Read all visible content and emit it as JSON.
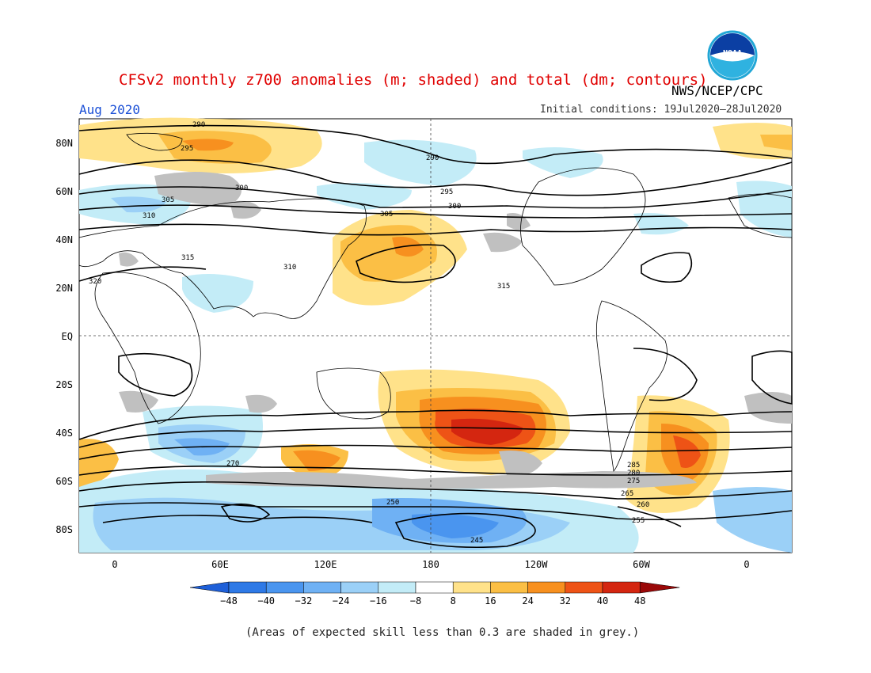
{
  "header": {
    "title": "CFSv2 monthly z700 anomalies (m; shaded) and total (dm; contours)",
    "agency": "NWS/NCEP/CPC",
    "month": "Aug 2020",
    "initial_conditions": "Initial conditions: 19Jul2020–28Jul2020"
  },
  "logo": {
    "name": "noaa-logo",
    "text": "NOAA"
  },
  "map": {
    "lat_labels": [
      "80N",
      "60N",
      "40N",
      "20N",
      "EQ",
      "20S",
      "40S",
      "60S",
      "80S"
    ],
    "lon_labels": [
      "0",
      "60E",
      "120E",
      "180",
      "120W",
      "60W",
      "0"
    ],
    "contour_labels": [
      "290",
      "295",
      "300",
      "305",
      "310",
      "315",
      "320",
      "315",
      "310",
      "305",
      "300",
      "295",
      "290",
      "285",
      "280",
      "275",
      "270",
      "265",
      "260",
      "255",
      "250",
      "245"
    ]
  },
  "colorbar": {
    "ticks": [
      "−48",
      "−40",
      "−32",
      "−24",
      "−16",
      "−8",
      "8",
      "16",
      "24",
      "32",
      "40",
      "48"
    ],
    "colors": [
      "#1e5fd8",
      "#2e79e6",
      "#4a95ef",
      "#6fb1f4",
      "#9bd0f7",
      "#c3ecf7",
      "#ffffff",
      "#ffe28a",
      "#fbbf45",
      "#f7901f",
      "#ee5316",
      "#d42610",
      "#9a0808"
    ]
  },
  "caption": "(Areas of expected skill less than 0.3 are shaded in grey.)"
}
